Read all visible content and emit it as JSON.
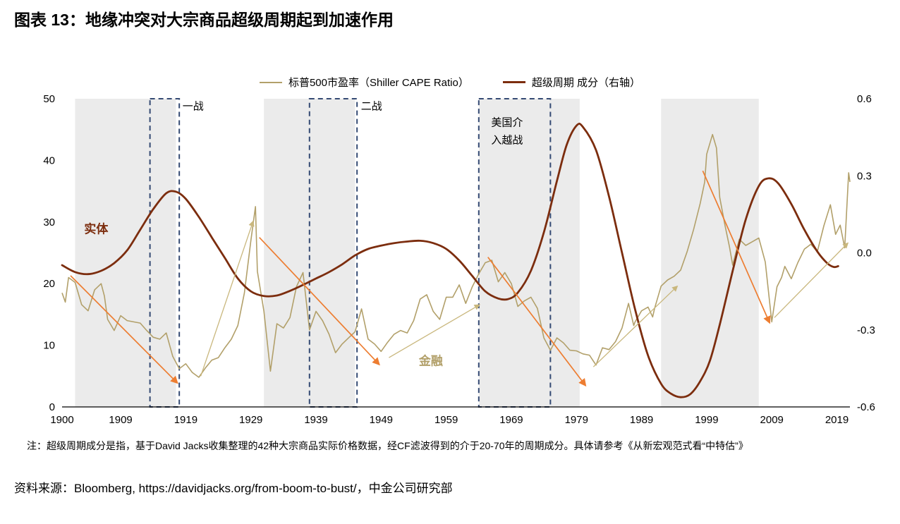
{
  "title": "图表 13：地缘冲突对大宗商品超级周期起到加速作用",
  "footnote": "注：超级周期成分是指，基于David Jacks收集整理的42种大宗商品实际价格数据，经CF滤波得到的介于20-70年的周期成分。具体请参考《从新宏观范式看“中特估”》",
  "source": "资料来源：Bloomberg, https://davidjacks.org/from-boom-to-bust/，中金公司研究部",
  "chart_data": {
    "type": "line",
    "title": "地缘冲突对大宗商品超级周期起到加速作用",
    "x_range": [
      1900,
      2021
    ],
    "x_ticks": [
      1900,
      1909,
      1919,
      1929,
      1939,
      1949,
      1959,
      1969,
      1979,
      1989,
      1999,
      2009,
      2019
    ],
    "left_axis": {
      "min": 0,
      "max": 50,
      "ticks": [
        0,
        10,
        20,
        30,
        40,
        50
      ]
    },
    "right_axis": {
      "min": -0.6,
      "max": 0.6,
      "ticks": [
        0.6,
        0.3,
        0.0,
        -0.3,
        -0.6
      ],
      "tick_labels": [
        "0.6",
        "0.3",
        "0.0",
        "-0.3",
        "-0.6"
      ]
    },
    "grid": false,
    "legend_position": "top-center",
    "band_color": "#ebebeb",
    "box_color": "#344a73",
    "series": [
      {
        "name": "标普500市盈率（Shiller CAPE Ratio）",
        "axis": "left",
        "color": "#b2a06a",
        "width": 1.6,
        "smooth": false,
        "points": [
          [
            1900,
            18.5
          ],
          [
            1900.5,
            17.0
          ],
          [
            1901,
            21.0
          ],
          [
            1902,
            20.2
          ],
          [
            1903,
            16.6
          ],
          [
            1904,
            15.6
          ],
          [
            1905,
            19.0
          ],
          [
            1906,
            20.0
          ],
          [
            1906.5,
            18.0
          ],
          [
            1907,
            14.2
          ],
          [
            1908,
            12.4
          ],
          [
            1909,
            14.8
          ],
          [
            1910,
            14.0
          ],
          [
            1911,
            13.8
          ],
          [
            1912,
            13.6
          ],
          [
            1913,
            12.4
          ],
          [
            1914,
            11.3
          ],
          [
            1915,
            11.0
          ],
          [
            1916,
            12.0
          ],
          [
            1917,
            8.2
          ],
          [
            1918,
            6.2
          ],
          [
            1919,
            7.0
          ],
          [
            1920,
            5.6
          ],
          [
            1921,
            4.8
          ],
          [
            1922,
            6.3
          ],
          [
            1923,
            7.6
          ],
          [
            1924,
            8.0
          ],
          [
            1925,
            9.6
          ],
          [
            1926,
            11.0
          ],
          [
            1927,
            13.2
          ],
          [
            1928,
            18.5
          ],
          [
            1929,
            27.0
          ],
          [
            1929.7,
            32.5
          ],
          [
            1930,
            22.0
          ],
          [
            1931,
            15.5
          ],
          [
            1932,
            5.8
          ],
          [
            1933,
            13.5
          ],
          [
            1934,
            12.8
          ],
          [
            1935,
            14.5
          ],
          [
            1936,
            19.5
          ],
          [
            1937,
            21.8
          ],
          [
            1938,
            12.5
          ],
          [
            1939,
            15.5
          ],
          [
            1940,
            14.0
          ],
          [
            1941,
            11.8
          ],
          [
            1942,
            8.8
          ],
          [
            1943,
            10.2
          ],
          [
            1944,
            11.2
          ],
          [
            1945,
            12.2
          ],
          [
            1946,
            15.9
          ],
          [
            1947,
            11.0
          ],
          [
            1948,
            10.2
          ],
          [
            1949,
            9.0
          ],
          [
            1950,
            10.5
          ],
          [
            1951,
            11.8
          ],
          [
            1952,
            12.4
          ],
          [
            1953,
            12.0
          ],
          [
            1954,
            14.0
          ],
          [
            1955,
            17.5
          ],
          [
            1956,
            18.2
          ],
          [
            1957,
            15.5
          ],
          [
            1958,
            14.2
          ],
          [
            1959,
            17.8
          ],
          [
            1960,
            17.8
          ],
          [
            1961,
            19.8
          ],
          [
            1962,
            16.8
          ],
          [
            1963,
            19.5
          ],
          [
            1964,
            21.6
          ],
          [
            1965,
            23.4
          ],
          [
            1966,
            23.8
          ],
          [
            1967,
            20.3
          ],
          [
            1968,
            21.8
          ],
          [
            1969,
            20.0
          ],
          [
            1970,
            16.3
          ],
          [
            1971,
            17.2
          ],
          [
            1972,
            17.8
          ],
          [
            1973,
            16.0
          ],
          [
            1974,
            11.2
          ],
          [
            1975,
            9.2
          ],
          [
            1976,
            11.2
          ],
          [
            1977,
            10.4
          ],
          [
            1978,
            9.2
          ],
          [
            1979,
            9.1
          ],
          [
            1980,
            8.6
          ],
          [
            1981,
            8.4
          ],
          [
            1982,
            6.8
          ],
          [
            1983,
            9.6
          ],
          [
            1984,
            9.3
          ],
          [
            1985,
            10.6
          ],
          [
            1986,
            12.8
          ],
          [
            1987,
            16.8
          ],
          [
            1987.8,
            13.2
          ],
          [
            1988,
            13.8
          ],
          [
            1989,
            15.6
          ],
          [
            1990,
            16.2
          ],
          [
            1990.7,
            14.6
          ],
          [
            1991,
            16.0
          ],
          [
            1992,
            19.6
          ],
          [
            1993,
            20.6
          ],
          [
            1994,
            21.2
          ],
          [
            1995,
            22.2
          ],
          [
            1996,
            25.2
          ],
          [
            1997,
            28.8
          ],
          [
            1998,
            33.0
          ],
          [
            1998.7,
            36.5
          ],
          [
            1999,
            41.0
          ],
          [
            1999.9,
            44.2
          ],
          [
            2000.5,
            42.0
          ],
          [
            2001,
            34.0
          ],
          [
            2001.8,
            29.5
          ],
          [
            2002.5,
            26.0
          ],
          [
            2003,
            23.0
          ],
          [
            2004,
            27.2
          ],
          [
            2005,
            26.2
          ],
          [
            2006,
            26.8
          ],
          [
            2007,
            27.4
          ],
          [
            2008,
            23.5
          ],
          [
            2009,
            13.8
          ],
          [
            2009.8,
            19.5
          ],
          [
            2010.5,
            21.0
          ],
          [
            2011,
            22.8
          ],
          [
            2012,
            20.8
          ],
          [
            2013,
            23.4
          ],
          [
            2014,
            25.6
          ],
          [
            2015,
            26.4
          ],
          [
            2016,
            25.2
          ],
          [
            2017,
            29.4
          ],
          [
            2018,
            32.8
          ],
          [
            2018.8,
            28.0
          ],
          [
            2019.5,
            29.5
          ],
          [
            2020.2,
            25.8
          ],
          [
            2020.8,
            38.0
          ],
          [
            2021,
            36.5
          ]
        ]
      },
      {
        "name": "超级周期 成分（右轴）",
        "axis": "right",
        "color": "#7c2d0e",
        "width": 2.8,
        "smooth": true,
        "points": [
          [
            1900,
            -0.048
          ],
          [
            1902,
            -0.075
          ],
          [
            1904,
            -0.083
          ],
          [
            1906,
            -0.07
          ],
          [
            1908,
            -0.04
          ],
          [
            1910,
            0.01
          ],
          [
            1912,
            0.09
          ],
          [
            1914,
            0.17
          ],
          [
            1916,
            0.232
          ],
          [
            1917.5,
            0.238
          ],
          [
            1919,
            0.21
          ],
          [
            1921,
            0.14
          ],
          [
            1923,
            0.06
          ],
          [
            1925,
            -0.02
          ],
          [
            1927,
            -0.1
          ],
          [
            1929,
            -0.15
          ],
          [
            1931,
            -0.168
          ],
          [
            1933,
            -0.166
          ],
          [
            1935,
            -0.148
          ],
          [
            1937,
            -0.125
          ],
          [
            1939,
            -0.1
          ],
          [
            1941,
            -0.075
          ],
          [
            1943,
            -0.045
          ],
          [
            1945,
            -0.01
          ],
          [
            1947,
            0.015
          ],
          [
            1949,
            0.028
          ],
          [
            1951,
            0.038
          ],
          [
            1953,
            0.044
          ],
          [
            1955,
            0.047
          ],
          [
            1957,
            0.038
          ],
          [
            1959,
            0.015
          ],
          [
            1961,
            -0.03
          ],
          [
            1963,
            -0.09
          ],
          [
            1965,
            -0.15
          ],
          [
            1967,
            -0.178
          ],
          [
            1968.5,
            -0.18
          ],
          [
            1970,
            -0.155
          ],
          [
            1972,
            -0.07
          ],
          [
            1974,
            0.08
          ],
          [
            1976,
            0.28
          ],
          [
            1977.5,
            0.42
          ],
          [
            1979,
            0.495
          ],
          [
            1980,
            0.49
          ],
          [
            1982,
            0.4
          ],
          [
            1984,
            0.22
          ],
          [
            1986,
            0.0
          ],
          [
            1988,
            -0.22
          ],
          [
            1990,
            -0.4
          ],
          [
            1992,
            -0.51
          ],
          [
            1993.5,
            -0.548
          ],
          [
            1995,
            -0.562
          ],
          [
            1996.5,
            -0.55
          ],
          [
            1998,
            -0.5
          ],
          [
            1999.5,
            -0.42
          ],
          [
            2001,
            -0.28
          ],
          [
            2003,
            -0.07
          ],
          [
            2005,
            0.13
          ],
          [
            2007,
            0.26
          ],
          [
            2008.5,
            0.29
          ],
          [
            2010,
            0.27
          ],
          [
            2012,
            0.19
          ],
          [
            2014,
            0.09
          ],
          [
            2016,
            0.005
          ],
          [
            2017.5,
            -0.04
          ],
          [
            2018.5,
            -0.055
          ],
          [
            2019.2,
            -0.052
          ]
        ]
      }
    ],
    "shaded_bands": [
      {
        "from": 1902,
        "to": 1917.5
      },
      {
        "from": 1931,
        "to": 1945
      },
      {
        "from": 1964,
        "to": 1979.5
      },
      {
        "from": 1992,
        "to": 2007
      }
    ],
    "event_boxes": [
      {
        "label": "一战",
        "from": 1913.5,
        "to": 1918,
        "label_lines": [
          "一战"
        ],
        "label_year": 1918.5,
        "label_value": 48.2
      },
      {
        "label": "二战",
        "from": 1938,
        "to": 1945.3,
        "label_lines": [
          "二战"
        ],
        "label_year": 1945.9,
        "label_value": 48.2
      },
      {
        "label": "美国介入越战",
        "from": 1964,
        "to": 1975,
        "label_lines": [
          "美国介",
          "入越战"
        ],
        "label_year": 1965.9,
        "label_value": 45.6
      }
    ],
    "annotations": [
      {
        "text": "实体",
        "year": 1903.4,
        "value": 28.2,
        "color": "#7c2d0e"
      },
      {
        "text": "金融",
        "year": 1954.8,
        "value": 6.8,
        "color": "#b2a06a"
      }
    ],
    "arrows": [
      {
        "color": "#ed7d31",
        "width": 1.7,
        "from": [
          1901.3,
          21.3
        ],
        "to": [
          1917.6,
          4.0
        ]
      },
      {
        "color": "#ed7d31",
        "width": 1.7,
        "from": [
          1930.3,
          27.5
        ],
        "to": [
          1948.6,
          7.0
        ]
      },
      {
        "color": "#ed7d31",
        "width": 1.7,
        "from": [
          1965.4,
          24.3
        ],
        "to": [
          1980.3,
          3.6
        ]
      },
      {
        "color": "#ed7d31",
        "width": 1.7,
        "from": [
          1998.4,
          38.3
        ],
        "to": [
          2008.6,
          13.8
        ]
      },
      {
        "color": "#c9b77d",
        "width": 1.3,
        "from": [
          1921.3,
          5.0
        ],
        "to": [
          1929.3,
          30.0
        ]
      },
      {
        "color": "#c9b77d",
        "width": 1.3,
        "from": [
          1950.2,
          8.0
        ],
        "to": [
          1964.0,
          16.5
        ]
      },
      {
        "color": "#c9b77d",
        "width": 1.3,
        "from": [
          1981.6,
          6.5
        ],
        "to": [
          1994.4,
          19.5
        ]
      },
      {
        "color": "#c9b77d",
        "width": 1.3,
        "from": [
          2009.4,
          14.5
        ],
        "to": [
          2020.6,
          26.5
        ]
      }
    ]
  }
}
